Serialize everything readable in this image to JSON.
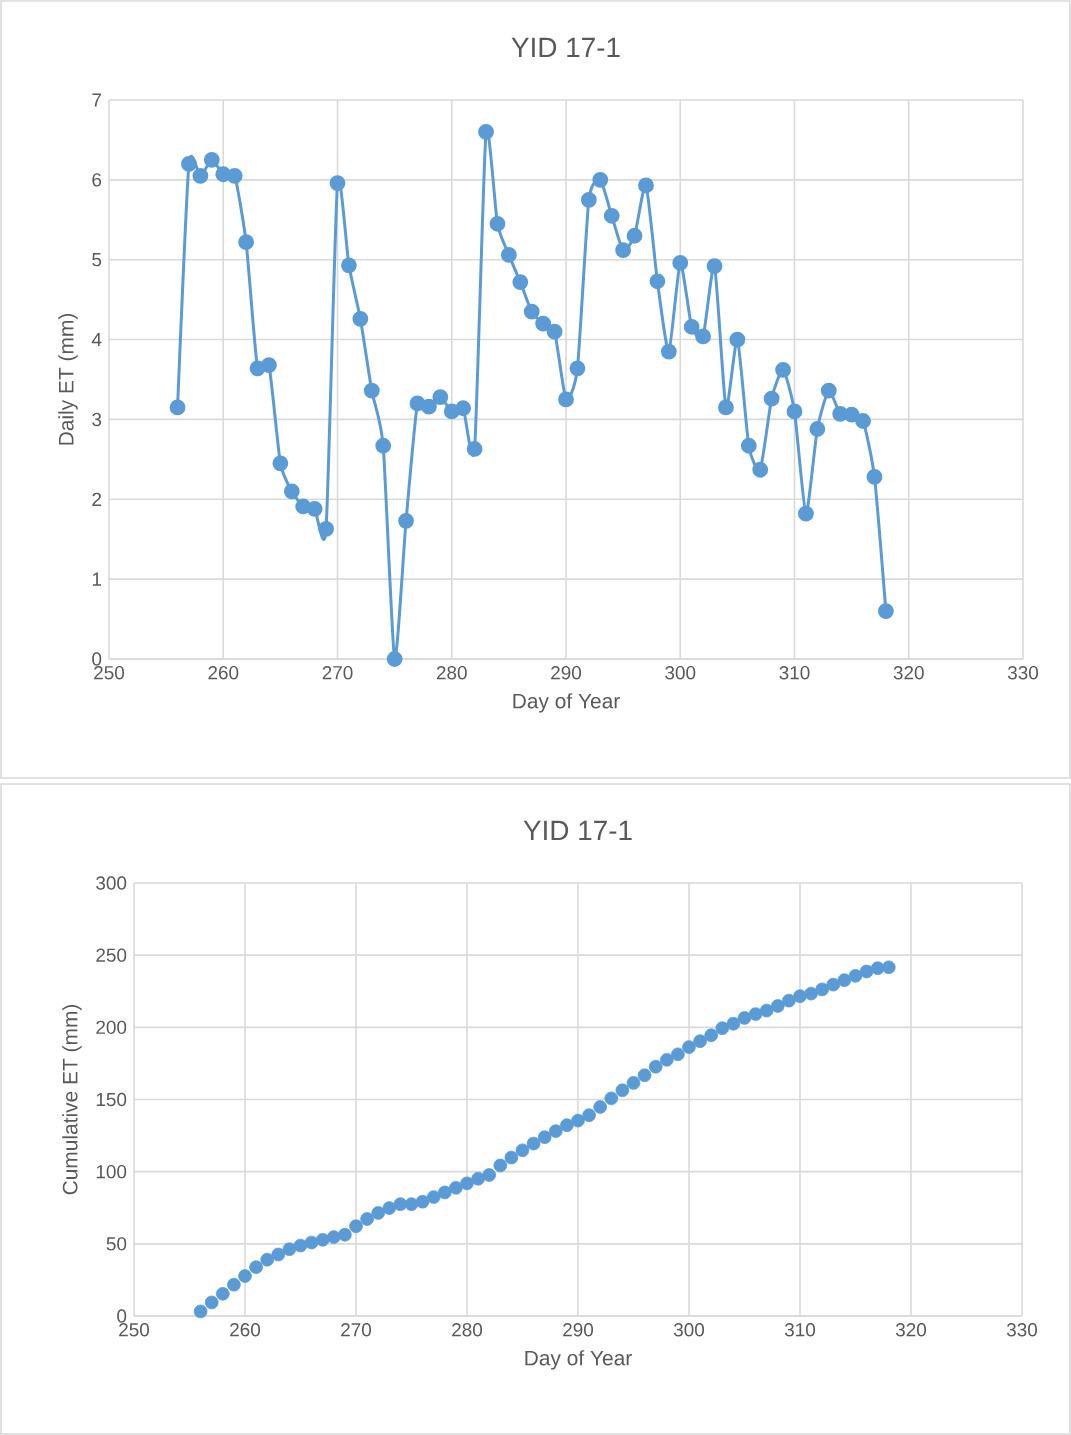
{
  "chart_data": [
    {
      "type": "line",
      "title": "YID 17-1",
      "xlabel": "Day of Year",
      "ylabel": "Daily ET (mm)",
      "xlim": [
        250,
        330
      ],
      "xticks": [
        250,
        260,
        270,
        280,
        290,
        300,
        310,
        320,
        330
      ],
      "ylim": [
        0,
        7
      ],
      "yticks": [
        0,
        1,
        2,
        3,
        4,
        5,
        6,
        7
      ],
      "grid": true,
      "marker": "circle",
      "line_style": "solid",
      "x": [
        256,
        257,
        258,
        259,
        260,
        261,
        262,
        263,
        264,
        265,
        266,
        267,
        268,
        269,
        270,
        271,
        272,
        273,
        274,
        275,
        276,
        277,
        278,
        279,
        280,
        281,
        282,
        283,
        284,
        285,
        286,
        287,
        288,
        289,
        290,
        291,
        292,
        293,
        294,
        295,
        296,
        297,
        298,
        299,
        300,
        301,
        302,
        303,
        304,
        305,
        306,
        307,
        308,
        309,
        310,
        311,
        312,
        313,
        314,
        315,
        316,
        317,
        318
      ],
      "series": [
        {
          "color": "#5b9bd5",
          "values": [
            3.15,
            6.2,
            6.05,
            6.25,
            6.07,
            6.05,
            5.22,
            3.64,
            3.68,
            2.45,
            2.1,
            1.91,
            1.88,
            1.63,
            5.96,
            4.93,
            4.26,
            3.36,
            2.67,
            0.0,
            1.73,
            3.2,
            3.16,
            3.28,
            3.1,
            3.14,
            2.63,
            6.6,
            5.45,
            5.06,
            4.72,
            4.35,
            4.2,
            4.1,
            3.25,
            3.64,
            5.75,
            6.0,
            5.55,
            5.12,
            5.3,
            5.93,
            4.73,
            3.85,
            4.96,
            4.16,
            4.04,
            4.92,
            3.15,
            4.0,
            2.67,
            2.37,
            3.26,
            3.62,
            3.1,
            1.82,
            2.88,
            3.36,
            3.07,
            3.06,
            2.98,
            2.28,
            0.6
          ]
        }
      ]
    },
    {
      "type": "scatter",
      "title": "YID 17-1",
      "xlabel": "Day of Year",
      "ylabel": "Cumulative ET (mm)",
      "xlim": [
        250,
        330
      ],
      "xticks": [
        250,
        260,
        270,
        280,
        290,
        300,
        310,
        320,
        330
      ],
      "ylim": [
        0,
        300
      ],
      "yticks": [
        0,
        50,
        100,
        150,
        200,
        250,
        300
      ],
      "grid": true,
      "marker": "circle",
      "x": [
        256,
        257,
        258,
        259,
        260,
        261,
        262,
        263,
        264,
        265,
        266,
        267,
        268,
        269,
        270,
        271,
        272,
        273,
        274,
        275,
        276,
        277,
        278,
        279,
        280,
        281,
        282,
        283,
        284,
        285,
        286,
        287,
        288,
        289,
        290,
        291,
        292,
        293,
        294,
        295,
        296,
        297,
        298,
        299,
        300,
        301,
        302,
        303,
        304,
        305,
        306,
        307,
        308,
        309,
        310,
        311,
        312,
        313,
        314,
        315,
        316,
        317,
        318
      ],
      "series": [
        {
          "color": "#5b9bd5",
          "values": [
            3.2,
            9.4,
            15.4,
            21.7,
            27.7,
            33.8,
            39.0,
            42.6,
            46.3,
            48.8,
            50.9,
            52.8,
            54.7,
            56.3,
            62.2,
            67.2,
            71.4,
            74.8,
            77.5,
            77.5,
            79.2,
            82.4,
            85.6,
            88.8,
            91.9,
            95.1,
            97.7,
            104.3,
            109.8,
            114.8,
            119.5,
            123.9,
            128.1,
            132.2,
            135.4,
            139.1,
            144.8,
            150.8,
            156.4,
            161.5,
            166.8,
            172.7,
            177.5,
            181.3,
            186.3,
            190.4,
            194.5,
            199.4,
            202.5,
            206.5,
            209.2,
            211.6,
            214.8,
            218.5,
            221.6,
            223.4,
            226.3,
            229.6,
            232.7,
            235.7,
            238.7,
            241.0,
            241.6
          ]
        }
      ]
    }
  ]
}
